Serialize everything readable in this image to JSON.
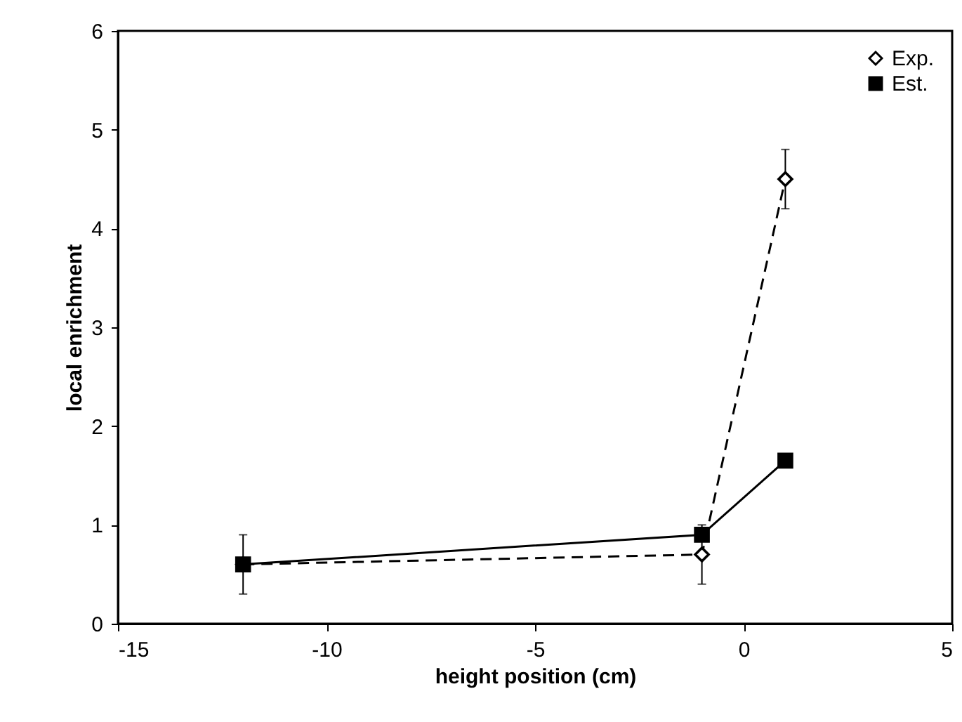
{
  "chart_data": {
    "type": "line",
    "xlabel": "height position (cm)",
    "ylabel": "local enrichment",
    "x": [
      -12,
      -1,
      1
    ],
    "series": [
      {
        "name": "Exp.",
        "color": "#000000",
        "values": [
          0.6,
          0.7,
          4.5
        ],
        "errors": [
          0.3,
          0.3,
          0.3
        ],
        "marker": "diamond",
        "line_style": "dashed"
      },
      {
        "name": "Est.",
        "color": "#000000",
        "values": [
          0.6,
          0.9,
          1.65
        ],
        "marker": "square",
        "line_style": "solid"
      }
    ],
    "xlim": [
      -15,
      5
    ],
    "xticks": [
      -15,
      -10,
      -5,
      0,
      5
    ],
    "ylim": [
      0,
      6
    ],
    "yticks": [
      0,
      1,
      2,
      3,
      4,
      5,
      6
    ],
    "grid": false,
    "legend": "top right"
  }
}
